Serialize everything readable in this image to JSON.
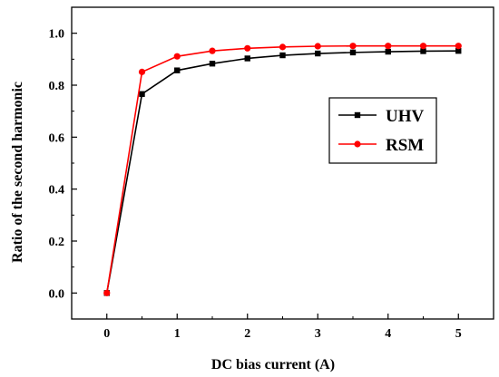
{
  "chart_data": {
    "type": "line",
    "xlabel": "DC bias current (A)",
    "ylabel": "Ratio of the second harmonic",
    "xlim": [
      -0.5,
      5.5
    ],
    "ylim": [
      -0.1,
      1.1
    ],
    "xticks": [
      0,
      1,
      2,
      3,
      4,
      5
    ],
    "xtick_labels": [
      "0",
      "1",
      "2",
      "3",
      "4",
      "5"
    ],
    "yticks": [
      0.0,
      0.2,
      0.4,
      0.6,
      0.8,
      1.0
    ],
    "ytick_labels": [
      "0.0",
      "0.2",
      "0.4",
      "0.6",
      "0.8",
      "1.0"
    ],
    "grid": false,
    "legend_position": "center-right",
    "x": [
      0,
      0.5,
      1,
      1.5,
      2,
      2.5,
      3,
      3.5,
      4,
      4.5,
      5
    ],
    "series": [
      {
        "name": "UHV",
        "color": "#000000",
        "marker": "square",
        "values": [
          0.0,
          0.766,
          0.857,
          0.883,
          0.903,
          0.915,
          0.922,
          0.926,
          0.929,
          0.931,
          0.932
        ]
      },
      {
        "name": "RSM",
        "color": "#ff0000",
        "marker": "circle",
        "values": [
          0.0,
          0.851,
          0.911,
          0.932,
          0.942,
          0.947,
          0.95,
          0.951,
          0.951,
          0.951,
          0.951
        ]
      }
    ]
  }
}
